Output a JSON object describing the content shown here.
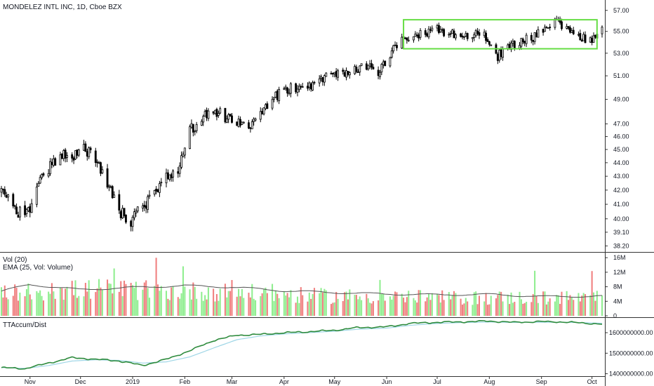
{
  "header": {
    "symbol_title": "MONDELEZ INTL INC, 1D, Cboe BZX"
  },
  "volume_pane": {
    "title": "Vol (20)",
    "ema_label": "EMA (25, Vol: Volume)"
  },
  "accum_pane": {
    "title": "TTAccum/Dist"
  },
  "colors": {
    "up": "#90ee90",
    "down": "#f08080",
    "candle": "#000000",
    "box": "#66dd44",
    "ema": "#555555",
    "accum": "#2e8b3d",
    "accum_ma": "#9fd6e6",
    "axis": "#333333"
  },
  "chart_data": [
    {
      "type": "candlestick",
      "title": "MONDELEZ INTL INC, 1D, Cboe BZX",
      "y_ticks": [
        "57.00",
        "55.00",
        "53.00",
        "51.00",
        "49.00",
        "47.00",
        "46.00",
        "45.00",
        "44.00",
        "43.00",
        "42.00",
        "41.00",
        "40.00",
        "39.10",
        "38.20"
      ],
      "ylim": [
        37.9,
        57.6
      ],
      "scale": "log",
      "x_labels": [
        "Nov",
        "Dec",
        "2019",
        "Feb",
        "Mar",
        "Apr",
        "May",
        "Jun",
        "Jul",
        "Aug",
        "Sep",
        "Oct"
      ],
      "x_label_dates": [
        "2018-11-01",
        "2018-12-01",
        "2019-01-01",
        "2019-02-01",
        "2019-03-01",
        "2019-04-01",
        "2019-05-01",
        "2019-06-01",
        "2019-07-01",
        "2019-08-01",
        "2019-09-01",
        "2019-10-01"
      ],
      "date_range": [
        "2018-10-15",
        "2019-10-07"
      ],
      "close_series": {
        "dates": [
          "2018-10-15",
          "2018-10-22",
          "2018-10-29",
          "2018-11-05",
          "2018-11-12",
          "2018-11-19",
          "2018-11-26",
          "2018-12-03",
          "2018-12-10",
          "2018-12-17",
          "2018-12-24",
          "2018-12-31",
          "2019-01-07",
          "2019-01-14",
          "2019-01-21",
          "2019-01-28",
          "2019-02-04",
          "2019-02-11",
          "2019-02-18",
          "2019-02-25",
          "2019-03-04",
          "2019-03-11",
          "2019-03-18",
          "2019-03-25",
          "2019-04-01",
          "2019-04-08",
          "2019-04-15",
          "2019-04-22",
          "2019-04-29",
          "2019-05-06",
          "2019-05-13",
          "2019-05-20",
          "2019-05-27",
          "2019-06-03",
          "2019-06-10",
          "2019-06-17",
          "2019-06-24",
          "2019-07-01",
          "2019-07-08",
          "2019-07-15",
          "2019-07-22",
          "2019-07-29",
          "2019-08-05",
          "2019-08-12",
          "2019-08-19",
          "2019-08-26",
          "2019-09-02",
          "2019-09-09",
          "2019-09-16",
          "2019-09-23",
          "2019-09-30",
          "2019-10-07"
        ],
        "values": [
          41.8,
          41.0,
          39.9,
          42.2,
          43.5,
          44.6,
          44.3,
          45.1,
          44.2,
          42.4,
          40.6,
          39.8,
          40.8,
          42.0,
          42.8,
          43.2,
          46.5,
          47.4,
          48.2,
          47.5,
          47.0,
          46.7,
          47.6,
          48.9,
          49.9,
          50.0,
          50.2,
          50.4,
          51.3,
          51.4,
          51.5,
          51.9,
          51.0,
          53.0,
          54.2,
          54.9,
          54.7,
          55.1,
          54.9,
          54.5,
          54.8,
          54.7,
          52.6,
          53.6,
          54.1,
          54.4,
          55.0,
          56.4,
          55.1,
          54.6,
          54.1,
          55.3
        ]
      },
      "annotation": {
        "type": "rectangle",
        "date_range": [
          "2019-06-11",
          "2019-10-04"
        ],
        "price_range": [
          53.4,
          56.1
        ]
      }
    },
    {
      "type": "bar",
      "title": "Vol (20)",
      "series_label": "EMA (25, Vol: Volume)",
      "y_ticks": [
        "16M",
        "12M",
        "8M",
        "4M",
        "0"
      ],
      "ylim": [
        0,
        17
      ],
      "unit": "M",
      "volume_profile": {
        "dates": [
          "2018-10-15",
          "2018-11-15",
          "2018-12-15",
          "2019-01-15",
          "2019-02-15",
          "2019-03-15",
          "2019-04-15",
          "2019-05-15",
          "2019-06-15",
          "2019-07-15",
          "2019-08-15",
          "2019-09-15",
          "2019-10-07"
        ],
        "values": [
          6.5,
          7.5,
          8.0,
          7.4,
          7.2,
          6.7,
          6.0,
          5.8,
          5.6,
          5.3,
          5.4,
          5.4,
          5.6
        ]
      },
      "ema_profile": {
        "dates": [
          "2018-10-15",
          "2018-11-01",
          "2018-12-01",
          "2019-01-01",
          "2019-02-01",
          "2019-03-01",
          "2019-04-01",
          "2019-05-01",
          "2019-06-01",
          "2019-07-01",
          "2019-08-01",
          "2019-09-01",
          "2019-10-07"
        ],
        "values": [
          6.8,
          8.6,
          7.2,
          7.8,
          8.3,
          7.9,
          6.9,
          6.4,
          6.0,
          5.8,
          5.9,
          5.3,
          5.4
        ]
      }
    },
    {
      "type": "line",
      "title": "TTAccum/Dist",
      "y_ticks": [
        "1600000000.00",
        "1500000000.00",
        "1400000000.00"
      ],
      "ylim": [
        1395000000,
        1665000000
      ],
      "series": [
        {
          "dates": [
            "2018-10-15",
            "2018-10-29",
            "2018-11-12",
            "2018-11-26",
            "2018-12-10",
            "2018-12-24",
            "2019-01-07",
            "2019-01-21",
            "2019-02-04",
            "2019-02-18",
            "2019-03-04",
            "2019-03-18",
            "2019-04-01",
            "2019-04-15",
            "2019-05-01",
            "2019-05-15",
            "2019-06-01",
            "2019-06-15",
            "2019-07-01",
            "2019-07-15",
            "2019-08-01",
            "2019-08-15",
            "2019-09-01",
            "2019-09-15",
            "2019-10-07"
          ],
          "values": [
            1430000000,
            1425000000,
            1452000000,
            1478000000,
            1470000000,
            1462000000,
            1440000000,
            1470000000,
            1512000000,
            1562000000,
            1588000000,
            1592000000,
            1600000000,
            1605000000,
            1612000000,
            1625000000,
            1628000000,
            1645000000,
            1650000000,
            1652000000,
            1656000000,
            1650000000,
            1654000000,
            1652000000,
            1642000000
          ]
        },
        {
          "dates": [
            "2018-10-15",
            "2018-10-29",
            "2018-11-12",
            "2018-11-26",
            "2018-12-10",
            "2018-12-24",
            "2019-01-07",
            "2019-01-21",
            "2019-02-04",
            "2019-02-18",
            "2019-03-04",
            "2019-03-18",
            "2019-04-01",
            "2019-04-15",
            "2019-05-01",
            "2019-05-15",
            "2019-06-01",
            "2019-06-15",
            "2019-07-01",
            "2019-07-15",
            "2019-08-01",
            "2019-08-15",
            "2019-09-01",
            "2019-09-15",
            "2019-10-07"
          ],
          "values": [
            1430000000,
            1426000000,
            1440000000,
            1462000000,
            1468000000,
            1465000000,
            1452000000,
            1458000000,
            1482000000,
            1525000000,
            1566000000,
            1584000000,
            1594000000,
            1600000000,
            1607000000,
            1617000000,
            1622000000,
            1636000000,
            1645000000,
            1649000000,
            1652000000,
            1650000000,
            1651000000,
            1651000000,
            1646000000
          ]
        }
      ]
    }
  ]
}
